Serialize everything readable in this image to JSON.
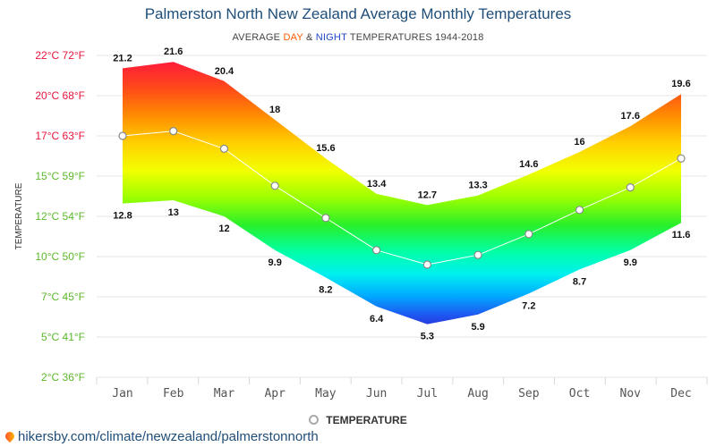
{
  "title": "Palmerston North New Zealand Average Monthly Temperatures",
  "subtitle": {
    "prefix": "AVERAGE",
    "day": "DAY",
    "amp": "&",
    "night": "NIGHT",
    "suffix": "TEMPERATURES 1944-2018"
  },
  "legend_label": "TEMPERATURE",
  "source": "hikersby.com/climate/newzealand/palmerstonnorth",
  "colors": {
    "title": "#1f4e79",
    "day": "#ff5a00",
    "night": "#1f46c8",
    "grid": "#e6e6e6",
    "avg_line": "#ffffff"
  },
  "chart_data": {
    "type": "area",
    "categories": [
      "Jan",
      "Feb",
      "Mar",
      "Apr",
      "May",
      "Jun",
      "Jul",
      "Aug",
      "Sep",
      "Oct",
      "Nov",
      "Dec"
    ],
    "ylabel": "TEMPERATURE",
    "ylim": [
      2,
      22
    ],
    "yticks": [
      {
        "value": 22,
        "label": "22°C 72°F",
        "color": "#e8143c"
      },
      {
        "value": 20,
        "label": "20°C 68°F",
        "color": "#e8143c"
      },
      {
        "value": 17,
        "label": "17°C 63°F",
        "color": "#e8143c"
      },
      {
        "value": 15,
        "label": "15°C 59°F",
        "color": "#5cb82a"
      },
      {
        "value": 12,
        "label": "12°C 54°F",
        "color": "#5cb82a"
      },
      {
        "value": 10,
        "label": "10°C 50°F",
        "color": "#5cb82a"
      },
      {
        "value": 7,
        "label": "7°C 45°F",
        "color": "#5cb82a"
      },
      {
        "value": 5,
        "label": "5°C 41°F",
        "color": "#5cb82a"
      },
      {
        "value": 2,
        "label": "2°C 36°F",
        "color": "#5cb82a"
      }
    ],
    "series": [
      {
        "name": "DAY",
        "values": [
          21.2,
          21.6,
          20.4,
          18,
          15.6,
          13.4,
          12.7,
          13.3,
          14.6,
          16,
          17.6,
          19.6
        ]
      },
      {
        "name": "NIGHT",
        "values": [
          12.8,
          13,
          12,
          9.9,
          8.2,
          6.4,
          5.3,
          5.9,
          7.2,
          8.7,
          9.9,
          11.6
        ]
      },
      {
        "name": "TEMPERATURE",
        "values": [
          17,
          17.3,
          16.2,
          13.9,
          11.9,
          9.9,
          9,
          9.6,
          10.9,
          12.4,
          13.8,
          15.6
        ]
      }
    ],
    "grid": true,
    "legend_position": "bottom-center"
  }
}
